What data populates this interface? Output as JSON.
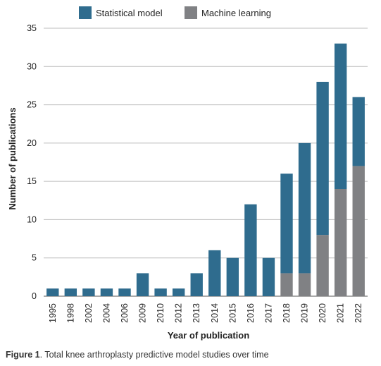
{
  "chart_data": {
    "type": "bar",
    "stacked": true,
    "categories": [
      "1995",
      "1998",
      "2002",
      "2004",
      "2006",
      "2009",
      "2010",
      "2012",
      "2013",
      "2014",
      "2015",
      "2016",
      "2017",
      "2018",
      "2019",
      "2020",
      "2021",
      "2022"
    ],
    "series": [
      {
        "name": "Machine learning",
        "color": "#808184",
        "values": [
          0,
          0,
          0,
          0,
          0,
          0,
          0,
          0,
          0,
          0,
          0,
          0,
          0,
          3,
          3,
          8,
          14,
          17
        ]
      },
      {
        "name": "Statistical model",
        "color": "#2f6c8e",
        "values": [
          1,
          1,
          1,
          1,
          1,
          3,
          1,
          1,
          3,
          6,
          5,
          12,
          5,
          13,
          17,
          20,
          19,
          9
        ]
      }
    ],
    "xlabel": "Year of publication",
    "ylabel": "Number of publications",
    "ylim": [
      0,
      35
    ],
    "yticks": [
      0,
      5,
      10,
      15,
      20,
      25,
      30,
      35
    ],
    "grid": true,
    "legend": "top-center"
  },
  "caption": {
    "label": "Figure 1",
    "text": ". Total knee arthroplasty predictive model studies over time"
  }
}
